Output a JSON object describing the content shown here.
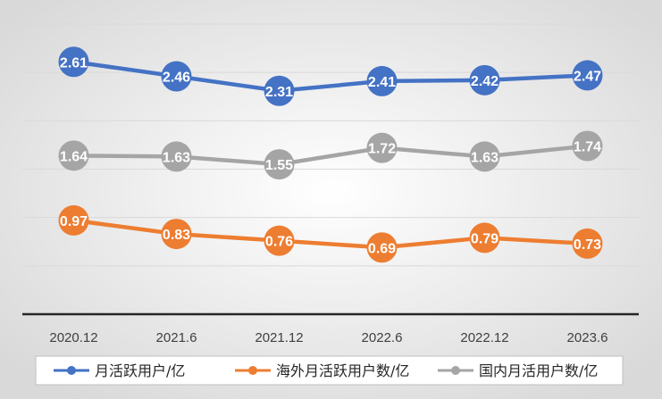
{
  "chart_data": {
    "type": "line",
    "categories": [
      "2020.12",
      "2021.6",
      "2021.12",
      "2022.6",
      "2022.12",
      "2023.6"
    ],
    "series": [
      {
        "name": "月活跃用户/亿",
        "color": "#4472C4",
        "values": [
          2.61,
          2.46,
          2.31,
          2.41,
          2.42,
          2.47
        ]
      },
      {
        "name": "海外月活跃用户数/亿",
        "color": "#ED7D31",
        "values": [
          0.97,
          0.83,
          0.76,
          0.69,
          0.79,
          0.73
        ]
      },
      {
        "name": "国内月活用户数/亿",
        "color": "#A5A5A5",
        "values": [
          1.64,
          1.63,
          1.55,
          1.72,
          1.63,
          1.74
        ]
      }
    ],
    "ylim": [
      0,
      3.0
    ],
    "grid": true,
    "legend": "bottom",
    "data_labels": true,
    "background": "gradient-gray"
  }
}
